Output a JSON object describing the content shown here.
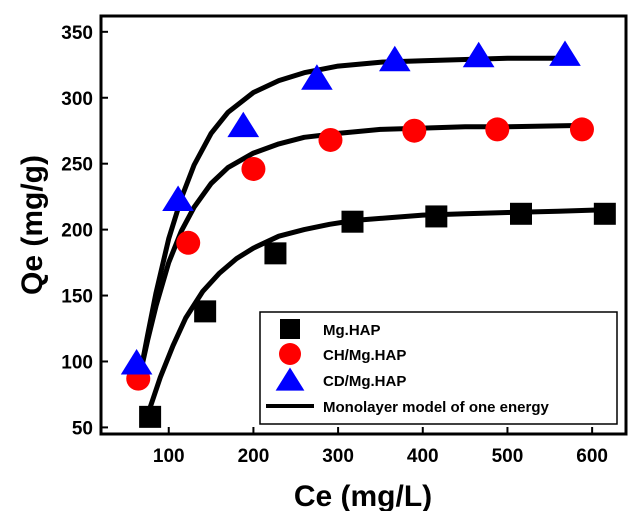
{
  "chart_data": {
    "type": "scatter",
    "title": "",
    "xlabel": "Ce (mg/L)",
    "ylabel": "Qe (mg/g)",
    "xlim": [
      20,
      640
    ],
    "ylim": [
      45,
      362
    ],
    "xticks": [
      100,
      200,
      300,
      400,
      500,
      600
    ],
    "yticks": [
      50,
      100,
      150,
      200,
      250,
      300,
      350
    ],
    "grid": false,
    "legend_position": "bottom-right",
    "series": [
      {
        "name": "Mg.HAP",
        "marker": "square",
        "color": "#000000",
        "x": [
          78,
          143,
          226,
          317,
          416,
          516,
          615
        ],
        "y": [
          58,
          138,
          182,
          206,
          210,
          212,
          212
        ]
      },
      {
        "name": "CH/Mg.HAP",
        "marker": "circle",
        "color": "#ff0000",
        "x": [
          64,
          123,
          200,
          291,
          390,
          488,
          588
        ],
        "y": [
          87,
          190,
          246,
          268,
          275,
          276,
          276
        ]
      },
      {
        "name": "CD/Mg.HAP",
        "marker": "triangle",
        "color": "#0000ff",
        "x": [
          62,
          111,
          188,
          275,
          367,
          466,
          568
        ],
        "y": [
          99,
          223,
          279,
          315,
          329,
          332,
          333
        ]
      },
      {
        "name": "Monolayer model of one energy",
        "marker": "line",
        "color": "#000000",
        "curves": [
          {
            "x": [
              78,
              90,
              105,
              120,
              140,
              160,
              180,
              200,
              230,
              260,
              290,
              320,
              360,
              400,
              450,
              500,
              560,
              615
            ],
            "y": [
              65,
              88,
              112,
              133,
              153,
              167,
              178,
              186,
              195,
              200,
              204,
              207,
              209,
              211,
              212,
              213,
              214,
              215
            ]
          },
          {
            "x": [
              66,
              75,
              85,
              100,
              115,
              130,
              150,
              170,
              200,
              230,
              260,
              300,
              350,
              400,
              450,
              500,
              590
            ],
            "y": [
              90,
              116,
              142,
              175,
              199,
              217,
              235,
              247,
              258,
              265,
              270,
              273,
              276,
              277,
              278,
              278,
              279
            ]
          },
          {
            "x": [
              66,
              75,
              85,
              100,
              115,
              130,
              150,
              170,
              200,
              230,
              260,
              300,
              350,
              400,
              450,
              500,
              568
            ],
            "y": [
              90,
              120,
              152,
              193,
              224,
              249,
              273,
              289,
              304,
              313,
              319,
              324,
              327,
              328,
              329,
              330,
              330
            ]
          }
        ]
      }
    ]
  }
}
